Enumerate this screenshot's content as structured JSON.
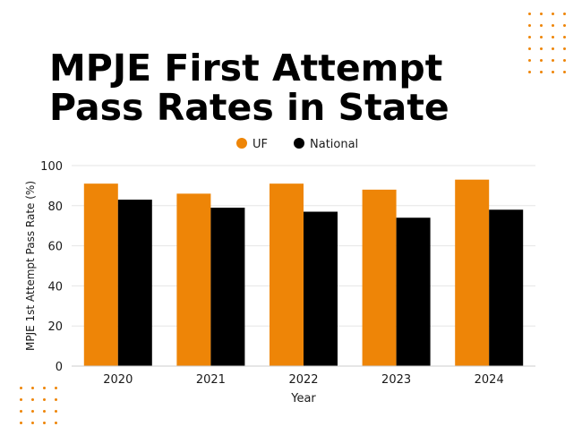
{
  "title": {
    "line1": "MPJE First Attempt",
    "line2": "Pass Rates in State"
  },
  "colors": {
    "accent": "#ee8507",
    "national": "#000000",
    "grid": "#e6e6e6",
    "text": "#1a1a1a"
  },
  "chart_data": {
    "type": "bar",
    "categories": [
      "2020",
      "2021",
      "2022",
      "2023",
      "2024"
    ],
    "series": [
      {
        "name": "UF",
        "values": [
          91,
          86,
          91,
          88,
          93
        ]
      },
      {
        "name": "National",
        "values": [
          83,
          79,
          77,
          74,
          78
        ]
      }
    ],
    "xlabel": "Year",
    "ylabel": "MPJE 1st Attempt Pass Rate (%)",
    "ylim": [
      0,
      100
    ],
    "yticks": [
      0,
      20,
      40,
      60,
      80,
      100
    ],
    "grid": true,
    "legend": "top-center"
  }
}
